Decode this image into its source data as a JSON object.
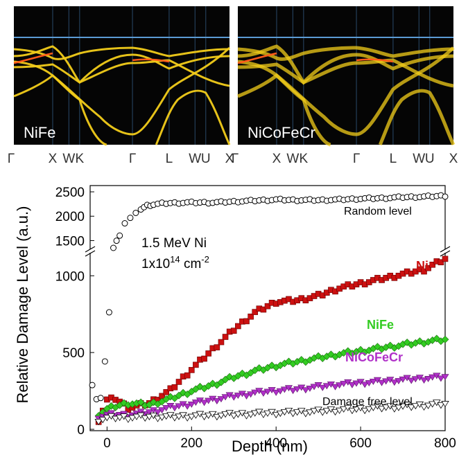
{
  "band_panels": [
    {
      "label": "NiFe",
      "kpoints": [
        "Γ",
        "X",
        "W",
        "K",
        "Γ",
        "L",
        "W",
        "U",
        "X"
      ]
    },
    {
      "label": "NiCoFeCr",
      "kpoints": [
        "Γ",
        "X",
        "W",
        "K",
        "Γ",
        "L",
        "W",
        "U",
        "X"
      ]
    }
  ],
  "colors": {
    "panel_bg": "#050505",
    "band": "#f2cc1a",
    "band_hot": "#ff5a1a",
    "fermi": "#5b9bd5",
    "ni": "#cc1111",
    "nife": "#33cc22",
    "nicofecr": "#b030c8",
    "random": "#000000",
    "free": "#000000"
  },
  "chart_data": {
    "type": "scatter",
    "xlabel": "Depth (nm)",
    "ylabel": "Relative Damage Level (a.u.)",
    "xlim": [
      -40,
      800
    ],
    "x_ticks": [
      0,
      200,
      400,
      600,
      800
    ],
    "y_ticks_lower": [
      0,
      500,
      1000
    ],
    "y_ticks_upper": [
      1500,
      2000,
      2500
    ],
    "ylim_lower": [
      0,
      1150
    ],
    "ylim_upper": [
      1350,
      2600
    ],
    "axis_break": true,
    "annotation": {
      "line1": "1.5 MeV Ni",
      "line2_base": "1x10",
      "line2_exp": "14",
      "line2_unit": " cm",
      "line2_unit_exp": "-2"
    },
    "series": [
      {
        "name": "Random level",
        "marker": "open-circle",
        "color": "#000000",
        "x": [
          -35,
          -25,
          -15,
          -5,
          5,
          15,
          30,
          42,
          55,
          68,
          80,
          95,
          110,
          130,
          150,
          170,
          190,
          220,
          250,
          300,
          350,
          400,
          450,
          500,
          550,
          600,
          650,
          700,
          750,
          800
        ],
        "y": [
          300,
          200,
          200,
          430,
          770,
          1350,
          1620,
          1860,
          1960,
          2050,
          2150,
          2220,
          2240,
          2260,
          2270,
          2275,
          2280,
          2280,
          2280,
          2300,
          2320,
          2340,
          2330,
          2330,
          2340,
          2360,
          2370,
          2390,
          2400,
          2420
        ]
      },
      {
        "name": "Ni",
        "marker": "filled-square",
        "color": "#cc1111",
        "x": [
          -20,
          0,
          20,
          50,
          100,
          150,
          200,
          250,
          300,
          350,
          400,
          450,
          500,
          550,
          600,
          650,
          700,
          750,
          800
        ],
        "y": [
          60,
          190,
          200,
          140,
          170,
          255,
          390,
          520,
          650,
          760,
          830,
          840,
          870,
          920,
          950,
          980,
          1010,
          1040,
          1110
        ]
      },
      {
        "name": "NiFe",
        "marker": "filled-diamond",
        "color": "#33cc22",
        "x": [
          -20,
          0,
          20,
          50,
          100,
          150,
          200,
          250,
          300,
          350,
          400,
          450,
          500,
          550,
          600,
          650,
          700,
          750,
          800
        ],
        "y": [
          100,
          130,
          150,
          170,
          160,
          200,
          250,
          290,
          340,
          380,
          415,
          440,
          465,
          490,
          510,
          530,
          550,
          570,
          585
        ]
      },
      {
        "name": "NiCoFeCr",
        "marker": "filled-triangle-down",
        "color": "#b030c8",
        "x": [
          -20,
          0,
          20,
          50,
          100,
          150,
          200,
          250,
          300,
          350,
          400,
          450,
          500,
          550,
          600,
          650,
          700,
          750,
          800
        ],
        "y": [
          80,
          90,
          95,
          90,
          110,
          140,
          165,
          190,
          215,
          235,
          250,
          260,
          275,
          290,
          300,
          310,
          320,
          330,
          340
        ]
      },
      {
        "name": "Damage free level",
        "marker": "open-triangle-down",
        "color": "#000000",
        "x": [
          -20,
          0,
          20,
          50,
          100,
          150,
          200,
          250,
          300,
          350,
          400,
          450,
          500,
          550,
          600,
          650,
          700,
          750,
          800
        ],
        "y": [
          60,
          70,
          75,
          75,
          80,
          80,
          85,
          90,
          95,
          100,
          105,
          110,
          115,
          125,
          130,
          140,
          145,
          155,
          165
        ]
      }
    ],
    "series_labels": {
      "random": "Random level",
      "ni": "Ni",
      "nife": "NiFe",
      "nicofecr": "NiCoFeCr",
      "free": "Damage free level"
    }
  }
}
